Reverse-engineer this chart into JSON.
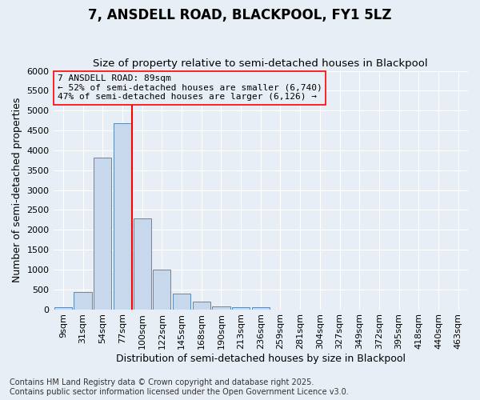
{
  "title": "7, ANSDELL ROAD, BLACKPOOL, FY1 5LZ",
  "subtitle": "Size of property relative to semi-detached houses in Blackpool",
  "xlabel": "Distribution of semi-detached houses by size in Blackpool",
  "ylabel": "Number of semi-detached properties",
  "footnote": "Contains HM Land Registry data © Crown copyright and database right 2025.\nContains public sector information licensed under the Open Government Licence v3.0.",
  "categories": [
    "9sqm",
    "31sqm",
    "54sqm",
    "77sqm",
    "100sqm",
    "122sqm",
    "145sqm",
    "168sqm",
    "190sqm",
    "213sqm",
    "236sqm",
    "259sqm",
    "281sqm",
    "304sqm",
    "327sqm",
    "349sqm",
    "372sqm",
    "395sqm",
    "418sqm",
    "440sqm",
    "463sqm"
  ],
  "values": [
    50,
    430,
    3820,
    4680,
    2290,
    1000,
    400,
    200,
    80,
    60,
    60,
    0,
    0,
    0,
    0,
    0,
    0,
    0,
    0,
    0,
    0
  ],
  "bar_color": "#c8d8ec",
  "bar_edge_color": "#5a8ab5",
  "red_line_x": 3.5,
  "annotation_text": "7 ANSDELL ROAD: 89sqm\n← 52% of semi-detached houses are smaller (6,740)\n47% of semi-detached houses are larger (6,126) →",
  "ylim": [
    0,
    6000
  ],
  "yticks": [
    0,
    500,
    1000,
    1500,
    2000,
    2500,
    3000,
    3500,
    4000,
    4500,
    5000,
    5500,
    6000
  ],
  "background_color": "#e8eef5",
  "grid_color": "#ffffff",
  "title_fontsize": 12,
  "subtitle_fontsize": 9.5,
  "axis_label_fontsize": 9,
  "tick_fontsize": 8,
  "annotation_fontsize": 8,
  "footnote_fontsize": 7
}
